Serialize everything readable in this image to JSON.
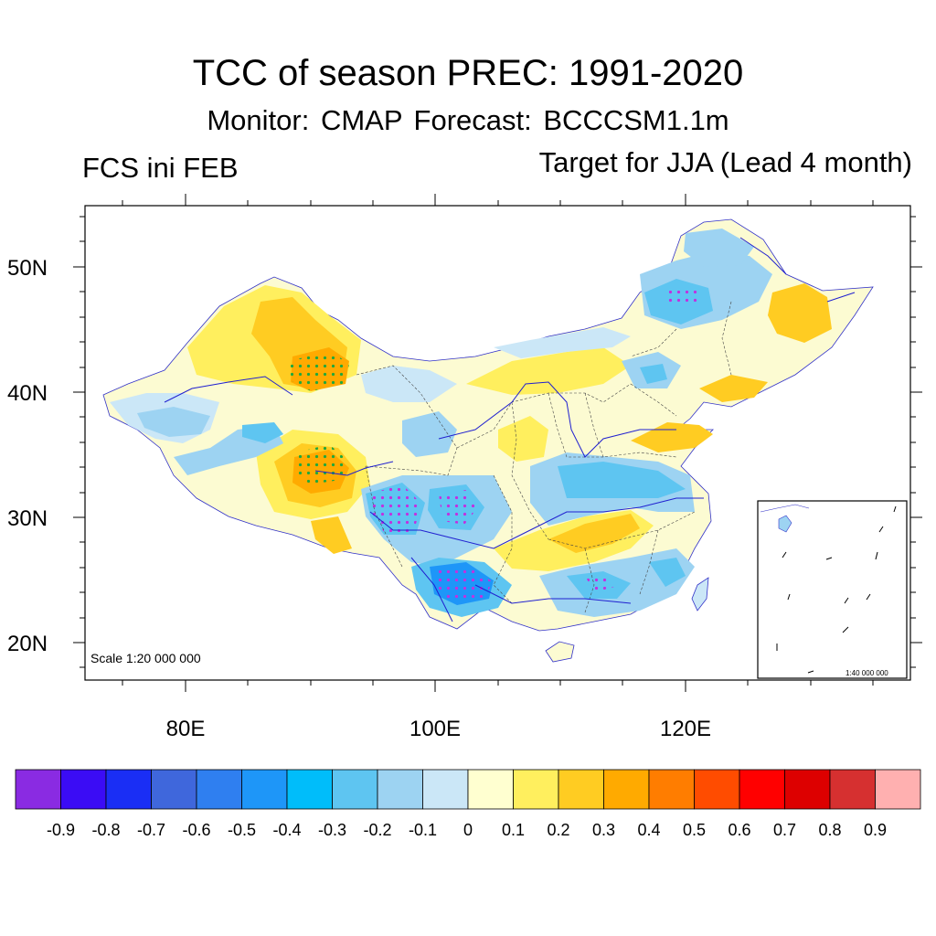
{
  "title": "TCC of season PREC: 1991-2020",
  "subtitle": "Monitor: CMAP   Forecast: BCCCSM1.1m",
  "left_subtitle": "FCS ini FEB",
  "right_subtitle": "Target for JJA (Lead 4 month)",
  "map": {
    "lat_labels": [
      "50N",
      "40N",
      "30N",
      "20N"
    ],
    "lon_labels": [
      "80E",
      "100E",
      "120E"
    ],
    "scale_text": "Scale 1:20 000 000",
    "inset_scale_text": "1:40 000 000",
    "lon_range": [
      72,
      137
    ],
    "lat_range": [
      17,
      55
    ]
  },
  "colorbar": {
    "colors": [
      "#8a2be2",
      "#3b0cf5",
      "#1a2ef5",
      "#3f67dc",
      "#2f7ff0",
      "#1e96f8",
      "#00bdfa",
      "#5ec5f1",
      "#9dd3f2",
      "#cbe7f7",
      "#ffffd0",
      "#ffef5e",
      "#ffcc22",
      "#ffaa00",
      "#ff7d00",
      "#ff4c00",
      "#ff0000",
      "#dd0000",
      "#d63030",
      "#ffb0b0"
    ],
    "labels": [
      "-0.9",
      "-0.8",
      "-0.7",
      "-0.6",
      "-0.5",
      "-0.4",
      "-0.3",
      "-0.2",
      "-0.1",
      "0",
      "0.1",
      "0.2",
      "0.3",
      "0.4",
      "0.5",
      "0.6",
      "0.7",
      "0.8",
      "0.9"
    ]
  }
}
